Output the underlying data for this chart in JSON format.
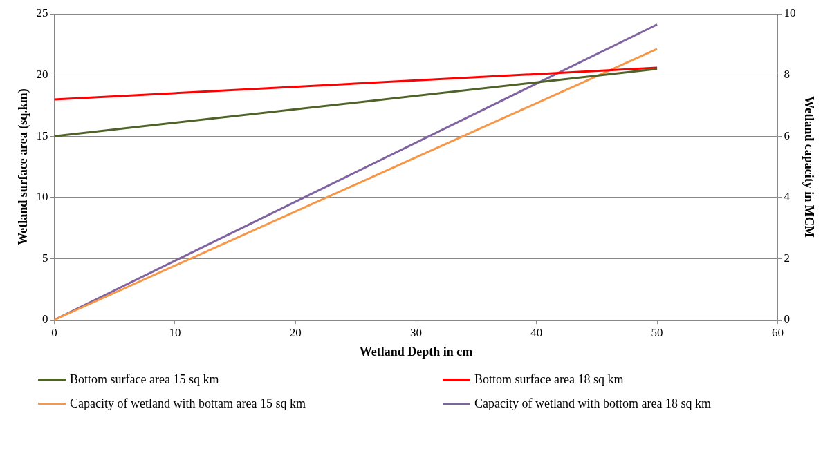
{
  "chart_data": {
    "type": "line",
    "xlabel": "Wetland Depth in cm",
    "ylabel": "Wetland surface area (sq.km)",
    "y2label": "Wetland capacity in MCM",
    "xlim": [
      0,
      60
    ],
    "xticks": [
      0,
      10,
      20,
      30,
      40,
      50,
      60
    ],
    "ylim": [
      0,
      25
    ],
    "yticks": [
      0,
      5,
      10,
      15,
      20,
      25
    ],
    "y2lim": [
      0,
      10
    ],
    "y2ticks": [
      0,
      2,
      4,
      6,
      8,
      10
    ],
    "grid": "y",
    "legend": "bottom",
    "marker": "none",
    "line_style": "solid",
    "x": [
      0,
      50
    ],
    "series": [
      {
        "name": "Bottom surface area 15 sq km",
        "color": "#4f6228",
        "values": [
          15,
          20.5
        ]
      },
      {
        "name": "Bottom surface area 18 sq km",
        "color": "#ff0000",
        "values": [
          18,
          20.6
        ]
      },
      {
        "name": "Capacity of wetland with bottam area 15 sq km",
        "color": "#f79646",
        "values": [
          0,
          8.85
        ],
        "axis": "y2"
      },
      {
        "name": "Capacity of wetland with bottom area 18 sq km",
        "color": "#8064a2",
        "values": [
          0,
          9.65
        ],
        "axis": "y2"
      }
    ]
  }
}
